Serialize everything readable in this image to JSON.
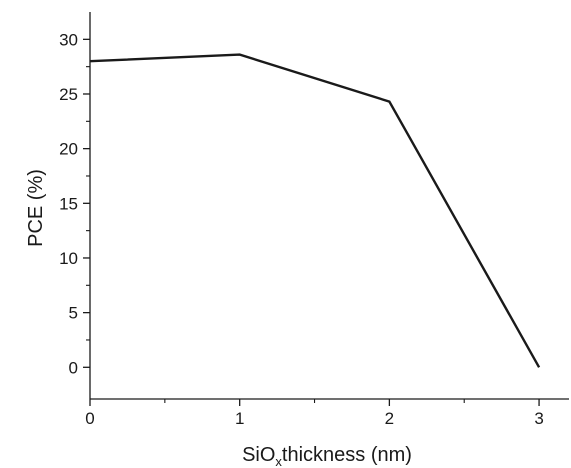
{
  "chart_data": {
    "type": "line",
    "title": "",
    "xlabel": "SiOxthickness (nm)",
    "xlabel_parts": {
      "main": "SiO",
      "sub": "x",
      "rest": "thickness (nm)"
    },
    "ylabel": "PCE (%)",
    "xlim": [
      0,
      3.2
    ],
    "ylim": [
      -2.9,
      32.5
    ],
    "xticks": [
      "0",
      "1",
      "2",
      "3"
    ],
    "yticks": [
      "0",
      "5",
      "10",
      "15",
      "20",
      "25",
      "30"
    ],
    "grid": false,
    "legend": "none",
    "series": [
      {
        "x": [
          0,
          1,
          2,
          3
        ],
        "values": [
          28.0,
          28.6,
          24.3,
          0.0
        ],
        "color": "#1a1a1a"
      }
    ]
  }
}
